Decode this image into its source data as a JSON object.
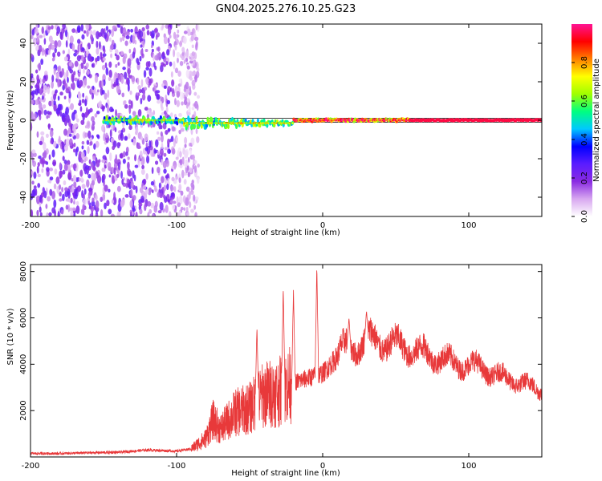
{
  "chart_data": [
    {
      "type": "heatmap",
      "title": "GN04.2025.276.10.25.G23",
      "xlabel": "Height of straight line (km)",
      "ylabel": "Frequency (Hz)",
      "xlim": [
        -200,
        150
      ],
      "ylim": [
        -50,
        50
      ],
      "xticks": [
        -200,
        -100,
        0,
        100
      ],
      "yticks": [
        -40,
        -20,
        0,
        20,
        40
      ],
      "colorbar": {
        "label": "Normalized spectral amplitude",
        "range": [
          0,
          1
        ],
        "ticks": [
          0.0,
          0.2,
          0.4,
          0.6,
          0.8
        ],
        "colors": [
          "#ffffff",
          "#d8a8f0",
          "#8a2be2",
          "#5a1cff",
          "#0000ff",
          "#00c8ff",
          "#00ff80",
          "#a0ff00",
          "#ffff00",
          "#ff8000",
          "#ff0000",
          "#ff1493"
        ]
      },
      "features": [
        {
          "name": "noise-region",
          "x_range": [
            -200,
            -85
          ],
          "freq_range": [
            -50,
            50
          ],
          "amplitude": "0.05-0.3"
        },
        {
          "name": "carrier-line",
          "x_range": [
            -150,
            150
          ],
          "freq": 0,
          "amplitude": "0.4-1.0"
        }
      ]
    },
    {
      "type": "line",
      "xlabel": "Height of straight line (km)",
      "ylabel": "SNR (10 * v/v)",
      "xlim": [
        -200,
        150
      ],
      "ylim": [
        0,
        8300
      ],
      "xticks": [
        -200,
        -100,
        0,
        100
      ],
      "yticks": [
        2000,
        4000,
        6000,
        8000
      ],
      "color": "#e8393a",
      "series": [
        {
          "name": "SNR",
          "x": [
            -200,
            -180,
            -160,
            -140,
            -120,
            -100,
            -90,
            -80,
            -75,
            -70,
            -60,
            -50,
            -40,
            -30,
            -25,
            -20,
            -10,
            -5,
            0,
            10,
            20,
            30,
            40,
            50,
            60,
            70,
            80,
            90,
            100,
            110,
            120,
            130,
            140,
            150
          ],
          "values": [
            150,
            150,
            180,
            200,
            300,
            250,
            350,
            800,
            1600,
            1200,
            1900,
            2100,
            2700,
            2800,
            3000,
            3200,
            3400,
            3500,
            3600,
            4300,
            4800,
            5000,
            5000,
            4800,
            4700,
            4400,
            4300,
            4000,
            4000,
            3800,
            3500,
            3300,
            3100,
            2900
          ]
        }
      ],
      "annotations": [
        {
          "x": -45,
          "y": 5600
        },
        {
          "x": -27,
          "y": 7300
        },
        {
          "x": -20,
          "y": 7200
        },
        {
          "x": -4,
          "y": 8200
        },
        {
          "x": 18,
          "y": 6000
        },
        {
          "x": 30,
          "y": 6300
        }
      ]
    }
  ]
}
